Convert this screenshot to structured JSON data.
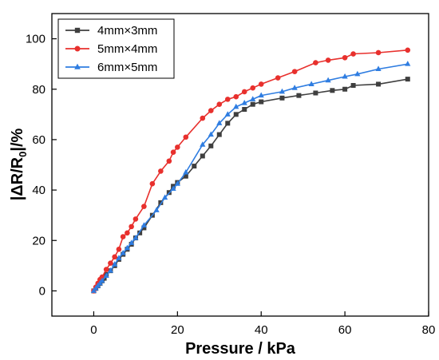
{
  "chart_data": {
    "type": "line",
    "xlabel": "Pressure / kPa",
    "ylabel_parts": {
      "before": "|ΔR/R",
      "sub": "0",
      "after": "|/%"
    },
    "xlim": [
      -10,
      80
    ],
    "ylim": [
      -10,
      110
    ],
    "xticks": [
      0,
      20,
      40,
      60,
      80
    ],
    "yticks": [
      0,
      20,
      40,
      60,
      80,
      100
    ],
    "grid": false,
    "legend_position": "top-left",
    "series": [
      {
        "name": "4mm×3mm",
        "color": "#3f3f3f",
        "marker": "square",
        "x": [
          0,
          0.5,
          1,
          1.5,
          2,
          2.5,
          3,
          4,
          5,
          6,
          7,
          8,
          9,
          10,
          11,
          12,
          14,
          16,
          18,
          19,
          20,
          22,
          24,
          26,
          28,
          30,
          32,
          34,
          36,
          38,
          40,
          45,
          49,
          53,
          57,
          60,
          62,
          68,
          75
        ],
        "y": [
          0,
          1,
          2,
          3,
          4,
          5,
          6.5,
          8,
          10,
          12.5,
          14.5,
          16.5,
          18.5,
          21,
          23,
          25,
          30,
          35,
          39,
          41.5,
          43,
          45.5,
          49.5,
          53.5,
          57.5,
          62,
          66.5,
          70,
          72,
          74,
          75,
          76.5,
          77.5,
          78.5,
          79.5,
          80,
          81.5,
          82,
          84
        ]
      },
      {
        "name": "5mm×4mm",
        "color": "#e8302d",
        "marker": "circle",
        "x": [
          0,
          0.5,
          1,
          1.5,
          2,
          3,
          4,
          5,
          6,
          7,
          8,
          9,
          10,
          12,
          14,
          16,
          18,
          19,
          20,
          22,
          26,
          28,
          30,
          32,
          34,
          36,
          38,
          40,
          44,
          48,
          53,
          56,
          60,
          62,
          68,
          75
        ],
        "y": [
          0,
          1.5,
          3,
          4.5,
          5.5,
          8.5,
          11,
          13.5,
          16.5,
          21.5,
          23,
          25.5,
          28.5,
          33.5,
          42.5,
          47.5,
          51.5,
          55,
          57,
          61,
          68.5,
          71.5,
          74,
          76,
          77,
          79,
          80.5,
          82,
          84.5,
          87,
          90.5,
          91.5,
          92.5,
          94,
          94.5,
          95.5
        ]
      },
      {
        "name": "6mm×5mm",
        "color": "#2f7de1",
        "marker": "triangle",
        "x": [
          0,
          0.5,
          1,
          1.5,
          2,
          3,
          4,
          5,
          6,
          7,
          8,
          9,
          10,
          12,
          15,
          17,
          19,
          20,
          22,
          26,
          28,
          30,
          32,
          34,
          36,
          38,
          40,
          45,
          48,
          52,
          56,
          60,
          63,
          68,
          75
        ],
        "y": [
          0,
          1,
          2,
          3,
          4,
          6,
          8,
          10.5,
          13,
          15,
          17,
          19,
          21,
          26,
          32,
          37,
          40.5,
          42.5,
          47,
          58,
          62,
          66.5,
          70,
          73,
          74.5,
          76,
          77.5,
          79,
          80.5,
          82,
          83.5,
          85,
          86,
          88,
          90
        ]
      }
    ]
  }
}
